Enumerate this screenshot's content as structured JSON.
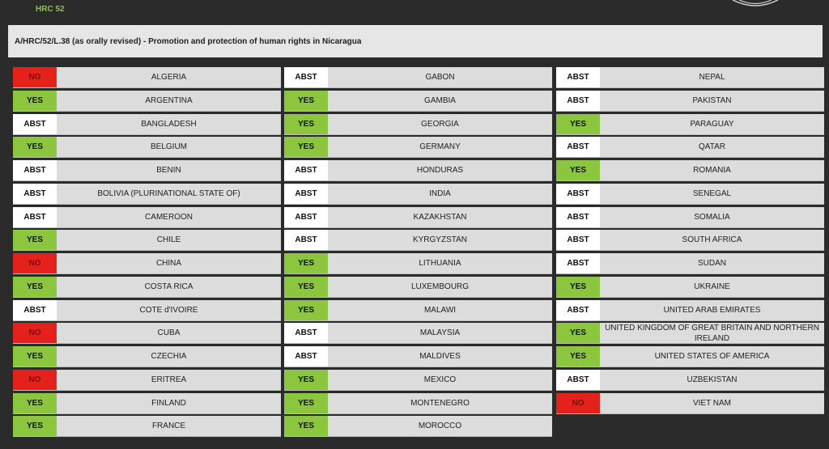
{
  "header": {
    "session": "HRC 52"
  },
  "resolution": {
    "title": "A/HRC/52/L.38 (as orally revised) - Promotion and protection of human rights in Nicaragua"
  },
  "colors": {
    "yes": "#8cc63f",
    "no": "#e4221b",
    "abst": "#ffffff",
    "background": "#2b2b2b"
  },
  "columns": [
    [
      {
        "vote": "NO",
        "country": "ALGERIA"
      },
      {
        "vote": "YES",
        "country": "ARGENTINA"
      },
      {
        "vote": "ABST",
        "country": "BANGLADESH"
      },
      {
        "vote": "YES",
        "country": "BELGIUM"
      },
      {
        "vote": "ABST",
        "country": "BENIN"
      },
      {
        "vote": "ABST",
        "country": "BOLIVIA (PLURINATIONAL STATE OF)"
      },
      {
        "vote": "ABST",
        "country": "CAMEROON"
      },
      {
        "vote": "YES",
        "country": "CHILE"
      },
      {
        "vote": "NO",
        "country": "CHINA"
      },
      {
        "vote": "YES",
        "country": "COSTA RICA"
      },
      {
        "vote": "ABST",
        "country": "COTE d'IVOIRE"
      },
      {
        "vote": "NO",
        "country": "CUBA"
      },
      {
        "vote": "YES",
        "country": "CZECHIA"
      },
      {
        "vote": "NO",
        "country": "ERITREA"
      },
      {
        "vote": "YES",
        "country": "FINLAND"
      },
      {
        "vote": "YES",
        "country": "FRANCE"
      }
    ],
    [
      {
        "vote": "ABST",
        "country": "GABON"
      },
      {
        "vote": "YES",
        "country": "GAMBIA"
      },
      {
        "vote": "YES",
        "country": "GEORGIA"
      },
      {
        "vote": "YES",
        "country": "GERMANY"
      },
      {
        "vote": "ABST",
        "country": "HONDURAS"
      },
      {
        "vote": "ABST",
        "country": "INDIA"
      },
      {
        "vote": "ABST",
        "country": "KAZAKHSTAN"
      },
      {
        "vote": "ABST",
        "country": "KYRGYZSTAN"
      },
      {
        "vote": "YES",
        "country": "LITHUANIA"
      },
      {
        "vote": "YES",
        "country": "LUXEMBOURG"
      },
      {
        "vote": "YES",
        "country": "MALAWI"
      },
      {
        "vote": "ABST",
        "country": "MALAYSIA"
      },
      {
        "vote": "ABST",
        "country": "MALDIVES"
      },
      {
        "vote": "YES",
        "country": "MEXICO"
      },
      {
        "vote": "YES",
        "country": "MONTENEGRO"
      },
      {
        "vote": "YES",
        "country": "MOROCCO"
      }
    ],
    [
      {
        "vote": "ABST",
        "country": "NEPAL"
      },
      {
        "vote": "ABST",
        "country": "PAKISTAN"
      },
      {
        "vote": "YES",
        "country": "PARAGUAY"
      },
      {
        "vote": "ABST",
        "country": "QATAR"
      },
      {
        "vote": "YES",
        "country": "ROMANIA"
      },
      {
        "vote": "ABST",
        "country": "SENEGAL"
      },
      {
        "vote": "ABST",
        "country": "SOMALIA"
      },
      {
        "vote": "ABST",
        "country": "SOUTH AFRICA"
      },
      {
        "vote": "ABST",
        "country": "SUDAN"
      },
      {
        "vote": "YES",
        "country": "UKRAINE"
      },
      {
        "vote": "ABST",
        "country": "UNITED ARAB EMIRATES"
      },
      {
        "vote": "YES",
        "country": "UNITED KINGDOM OF GREAT BRITAIN AND NORTHERN IRELAND"
      },
      {
        "vote": "YES",
        "country": "UNITED STATES OF AMERICA"
      },
      {
        "vote": "ABST",
        "country": "UZBEKISTAN"
      },
      {
        "vote": "NO",
        "country": "VIET NAM"
      }
    ]
  ]
}
